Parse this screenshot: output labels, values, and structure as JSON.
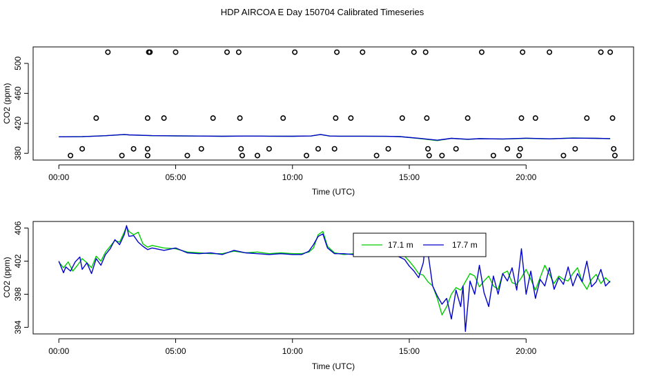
{
  "title": "HDP AIRCOA E  Day 150704  Calibrated Timeseries",
  "colors": {
    "green": "#00cc00",
    "blue": "#0000cc",
    "axis": "#000000"
  },
  "chart_data": [
    {
      "type": "line+scatter",
      "xlabel": "Time (UTC)",
      "ylabel": "CO2 (ppm)",
      "xlim": [
        -1.1,
        24.6
      ],
      "ylim": [
        371,
        522
      ],
      "xticks": [
        0,
        5,
        10,
        15,
        20
      ],
      "xtick_labels": [
        "00:00",
        "05:00",
        "10:00",
        "15:00",
        "20:00"
      ],
      "yticks": [
        380,
        420,
        460,
        500
      ],
      "ytick_labels": [
        "380",
        "420",
        "460",
        "500"
      ],
      "series": [
        {
          "x": [
            0.0,
            1,
            2,
            2.8,
            3,
            4,
            5,
            6,
            7,
            8,
            9,
            10,
            10.8,
            11.2,
            11.6,
            12,
            13,
            14,
            14.6,
            15.5,
            16.2,
            16.8,
            17.5,
            18,
            19,
            20,
            21,
            22,
            23,
            23.6
          ],
          "y": [
            402.0,
            402.3,
            403.5,
            405.0,
            404.5,
            403.5,
            403.2,
            403.0,
            402.8,
            403.0,
            402.9,
            402.8,
            403.1,
            405.0,
            403.0,
            402.9,
            402.9,
            402.7,
            402.3,
            399.5,
            397.0,
            400.0,
            398.5,
            399.5,
            399.0,
            400.0,
            399.3,
            400.5,
            400.0,
            399.5
          ]
        },
        {
          "x": [
            0.0,
            1,
            2,
            2.8,
            3,
            4,
            5,
            6,
            7,
            8,
            9,
            10,
            10.8,
            11.2,
            11.6,
            12,
            13,
            14,
            14.6,
            15.5,
            16.2,
            16.8,
            17.5,
            18,
            19,
            20,
            21,
            22,
            23,
            23.6
          ],
          "y": [
            402.0,
            402.2,
            403.5,
            405.2,
            404.6,
            403.6,
            403.3,
            403.0,
            402.8,
            403.0,
            402.9,
            402.8,
            403.1,
            405.2,
            403.0,
            402.9,
            402.9,
            402.7,
            402.3,
            399.8,
            397.5,
            400.0,
            398.8,
            399.5,
            399.2,
            400.2,
            399.4,
            400.3,
            400.0,
            399.6
          ]
        },
        {
          "x": [
            0.5,
            1.0,
            1.6,
            2.1,
            2.7,
            3.2,
            3.8,
            3.8,
            3.8,
            3.85,
            3.9,
            4.5,
            5.0,
            5.5,
            6.1,
            6.6,
            7.2,
            7.7,
            7.75,
            7.8,
            7.85,
            8.5,
            9.0,
            9.6,
            10.1,
            10.6,
            11.1,
            11.8,
            11.85,
            11.9,
            12.5,
            13.0,
            13.6,
            14.1,
            14.7,
            15.2,
            15.7,
            15.75,
            15.8,
            15.85,
            16.4,
            17.0,
            17.5,
            18.1,
            18.6,
            19.2,
            19.7,
            19.75,
            19.8,
            19.85,
            20.4,
            21.0,
            21.6,
            22.1,
            22.6,
            23.2,
            23.6,
            23.7,
            23.75,
            23.8
          ],
          "y": [
            377,
            386,
            427,
            515,
            377,
            386,
            377,
            386,
            427,
            515,
            515,
            427,
            515,
            377,
            386,
            427,
            515,
            515,
            427,
            386,
            377,
            377,
            386,
            427,
            515,
            377,
            386,
            386,
            427,
            515,
            427,
            515,
            377,
            386,
            427,
            515,
            515,
            427,
            386,
            377,
            377,
            386,
            427,
            515,
            377,
            386,
            377,
            386,
            427,
            515,
            427,
            515,
            377,
            386,
            427,
            515,
            515,
            427,
            386,
            377
          ]
        }
      ]
    },
    {
      "type": "line",
      "xlabel": "Time (UTC)",
      "ylabel": "CO2 (ppm)",
      "xlim": [
        -1.1,
        24.6
      ],
      "ylim": [
        393.2,
        406.8
      ],
      "xticks": [
        0,
        5,
        10,
        15,
        20
      ],
      "xtick_labels": [
        "00:00",
        "05:00",
        "10:00",
        "15:00",
        "20:00"
      ],
      "yticks": [
        394,
        398,
        402,
        406
      ],
      "ytick_labels": [
        "394",
        "398",
        "402",
        "406"
      ],
      "legend": {
        "placement": "top-center"
      },
      "series": [
        {
          "name": "17.1 m",
          "x": [
            0.0,
            0.2,
            0.4,
            0.6,
            0.8,
            1.0,
            1.2,
            1.4,
            1.6,
            1.8,
            2.0,
            2.2,
            2.4,
            2.6,
            2.8,
            2.9,
            3.0,
            3.2,
            3.4,
            3.6,
            3.8,
            4.0,
            4.5,
            5.0,
            5.5,
            6.0,
            6.5,
            7.0,
            7.5,
            8.0,
            8.5,
            9.0,
            9.5,
            10.0,
            10.4,
            10.7,
            10.9,
            11.1,
            11.3,
            11.5,
            11.8,
            12.2,
            12.6,
            13.0,
            13.5,
            14.0,
            14.5,
            14.8,
            15.0,
            15.2,
            15.4,
            15.6,
            15.8,
            16.0,
            16.2,
            16.4,
            16.6,
            16.8,
            17.0,
            17.2,
            17.4,
            17.6,
            17.8,
            18.0,
            18.2,
            18.4,
            18.6,
            18.8,
            19.0,
            19.2,
            19.4,
            19.6,
            19.8,
            20.0,
            20.2,
            20.4,
            20.6,
            20.8,
            21.0,
            21.2,
            21.4,
            21.6,
            21.8,
            22.0,
            22.2,
            22.4,
            22.6,
            22.8,
            23.0,
            23.2,
            23.4,
            23.6
          ],
          "y": [
            401.9,
            401.2,
            401.9,
            400.8,
            401.5,
            402.3,
            401.8,
            401.2,
            402.6,
            402.0,
            403.1,
            403.8,
            404.5,
            404.3,
            405.5,
            406.2,
            405.6,
            405.2,
            405.5,
            404.1,
            403.7,
            403.9,
            403.6,
            403.5,
            403.1,
            403.0,
            402.9,
            402.9,
            403.2,
            403.0,
            403.1,
            402.9,
            403.0,
            402.9,
            402.9,
            403.1,
            403.6,
            405.2,
            405.6,
            403.8,
            403.0,
            402.8,
            402.9,
            403.0,
            402.9,
            402.9,
            402.8,
            402.6,
            402.0,
            401.3,
            400.5,
            400.3,
            399.5,
            399.0,
            397.5,
            395.5,
            396.5,
            398.0,
            398.8,
            398.5,
            399.5,
            400.5,
            400.2,
            398.9,
            399.6,
            400.2,
            399.0,
            398.6,
            400.5,
            400.8,
            399.4,
            399.2,
            400.0,
            401.0,
            399.8,
            398.5,
            400.0,
            401.5,
            400.4,
            399.3,
            400.2,
            399.8,
            399.6,
            400.5,
            401.2,
            399.5,
            398.6,
            399.8,
            400.4,
            399.3,
            400.0,
            399.4
          ]
        },
        {
          "name": "17.7 m",
          "x": [
            0.0,
            0.2,
            0.3,
            0.5,
            0.7,
            0.9,
            1.0,
            1.2,
            1.4,
            1.6,
            1.8,
            2.0,
            2.2,
            2.4,
            2.6,
            2.8,
            2.9,
            3.0,
            3.2,
            3.4,
            3.6,
            3.8,
            4.0,
            4.5,
            5.0,
            5.5,
            6.0,
            6.5,
            7.0,
            7.5,
            8.0,
            8.5,
            9.0,
            9.5,
            10.0,
            10.4,
            10.7,
            10.9,
            11.1,
            11.3,
            11.5,
            11.8,
            12.2,
            12.6,
            13.0,
            13.5,
            14.0,
            14.5,
            14.8,
            15.0,
            15.2,
            15.4,
            15.6,
            15.7,
            15.8,
            16.0,
            16.2,
            16.4,
            16.6,
            16.8,
            17.0,
            17.2,
            17.3,
            17.4,
            17.6,
            17.8,
            18.0,
            18.2,
            18.4,
            18.6,
            18.8,
            19.0,
            19.2,
            19.4,
            19.6,
            19.8,
            20.0,
            20.2,
            20.4,
            20.6,
            20.8,
            21.0,
            21.2,
            21.4,
            21.6,
            21.8,
            22.0,
            22.2,
            22.4,
            22.6,
            22.8,
            23.0,
            23.2,
            23.4,
            23.6
          ],
          "y": [
            402.0,
            400.6,
            401.3,
            400.8,
            401.9,
            402.5,
            401.0,
            401.8,
            400.5,
            402.3,
            401.5,
            402.8,
            403.5,
            404.6,
            404.0,
            405.2,
            406.3,
            405.0,
            405.1,
            404.3,
            403.8,
            403.4,
            403.6,
            403.3,
            403.6,
            403.0,
            402.9,
            403.0,
            402.8,
            403.3,
            403.0,
            402.9,
            402.8,
            402.9,
            402.8,
            402.8,
            403.2,
            404.0,
            405.0,
            405.3,
            403.6,
            402.9,
            402.9,
            402.8,
            402.9,
            402.8,
            402.9,
            402.6,
            402.2,
            401.4,
            400.8,
            400.0,
            401.8,
            404.2,
            403.0,
            399.0,
            397.8,
            396.8,
            397.5,
            395.0,
            398.5,
            396.5,
            399.0,
            393.5,
            399.6,
            398.0,
            401.5,
            398.2,
            396.5,
            400.2,
            398.0,
            400.5,
            399.6,
            401.2,
            398.5,
            403.5,
            398.0,
            400.8,
            397.5,
            399.8,
            399.0,
            401.2,
            398.6,
            400.0,
            399.2,
            401.3,
            399.0,
            400.5,
            399.5,
            402.0,
            398.9,
            399.5,
            401.0,
            399.0,
            399.6
          ]
        }
      ]
    }
  ]
}
